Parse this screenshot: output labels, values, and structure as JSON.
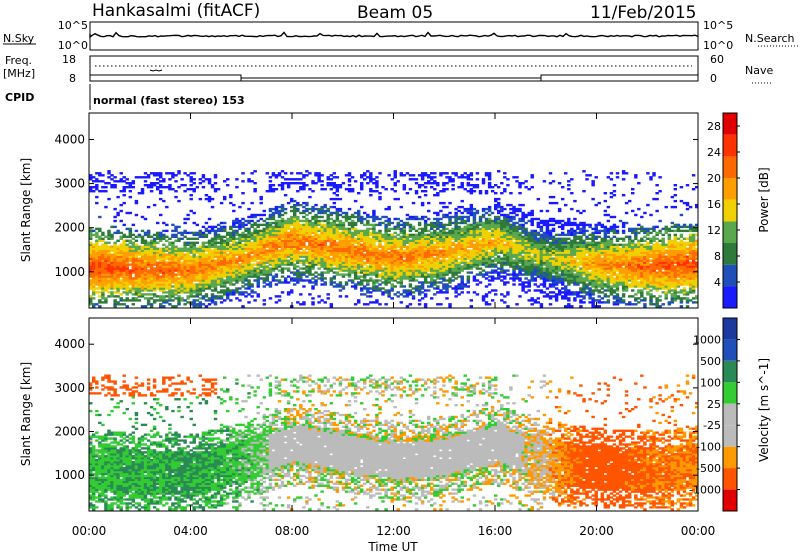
{
  "header": {
    "station": "Hankasalmi (fitACF)",
    "beam": "Beam 05",
    "date": "11/Feb/2015"
  },
  "panels": {
    "nsky_label": "N.Sky",
    "nsky_ticks": [
      "10^5",
      "10^0"
    ],
    "nsearch_label": "N.Search",
    "nsearch_ticks": [
      "10^5",
      "10^0"
    ],
    "freq_label": "Freq.",
    "freq_unit": "[MHz]",
    "freq_ticks": [
      "18",
      "8"
    ],
    "nave_label": "Nave",
    "nave_ticks": [
      "60",
      "0"
    ],
    "cpid_label": "CPID",
    "cpid_text": "normal (fast stereo) 153"
  },
  "colors": {
    "power": [
      "#1a1aff",
      "#1f4fb8",
      "#2e7a3a",
      "#5aa84e",
      "#f0d000",
      "#ff9e00",
      "#ff6a00",
      "#ff3300",
      "#e00000"
    ],
    "velocity": [
      "#e00000",
      "#ff5500",
      "#ff9900",
      "#bbbbbb",
      "#bbbbbb",
      "#33cc33",
      "#2a8a55",
      "#1f4fb8",
      "#1a3aa0"
    ]
  },
  "chart_data": [
    {
      "type": "heatmap",
      "quantity": "Power",
      "xlabel": "Time UT",
      "ylabel": "Slant Range [km]",
      "x_ticks": [
        "00:00",
        "04:00",
        "08:00",
        "12:00",
        "16:00",
        "20:00",
        "00:00"
      ],
      "x_range_hours": [
        0,
        24
      ],
      "y_ticks": [
        1000,
        2000,
        3000,
        4000
      ],
      "ylim": [
        180,
        4600
      ],
      "colorbar_label": "Power [dB]",
      "colorbar_ticks": [
        4,
        8,
        12,
        16,
        20,
        24,
        28
      ],
      "colorbar_range": [
        0,
        30
      ],
      "hours": [
        0,
        2,
        4,
        6,
        8,
        10,
        12,
        14,
        16,
        18,
        20,
        22,
        24
      ],
      "main_band_center_km": [
        1100,
        1050,
        1000,
        1300,
        1700,
        1500,
        1300,
        1400,
        1700,
        1300,
        1150,
        1100,
        1200
      ],
      "main_band_level_db": [
        26,
        24,
        22,
        20,
        22,
        22,
        22,
        20,
        18,
        14,
        20,
        24,
        26
      ]
    },
    {
      "type": "heatmap",
      "quantity": "Velocity",
      "xlabel": "Time UT",
      "ylabel": "Slant Range [km]",
      "x_ticks": [
        "00:00",
        "04:00",
        "08:00",
        "12:00",
        "16:00",
        "20:00",
        "00:00"
      ],
      "x_range_hours": [
        0,
        24
      ],
      "y_ticks": [
        1000,
        2000,
        3000,
        4000
      ],
      "ylim": [
        180,
        4600
      ],
      "colorbar_label": "Velocity [m s^-1]",
      "colorbar_ticks": [
        "1000",
        "500",
        "100",
        "25",
        "-25",
        "-100",
        "-500",
        "-1000"
      ],
      "hours": [
        0,
        2,
        4,
        6,
        8,
        10,
        12,
        14,
        16,
        18,
        20,
        22,
        24
      ],
      "main_band_center_km": [
        1100,
        1050,
        1000,
        1300,
        1700,
        1500,
        1300,
        1400,
        1700,
        1300,
        1150,
        1100,
        1200
      ],
      "main_band_velocity_ms": [
        80,
        100,
        120,
        60,
        0,
        0,
        0,
        0,
        10,
        -40,
        -200,
        -120,
        -80
      ]
    }
  ]
}
